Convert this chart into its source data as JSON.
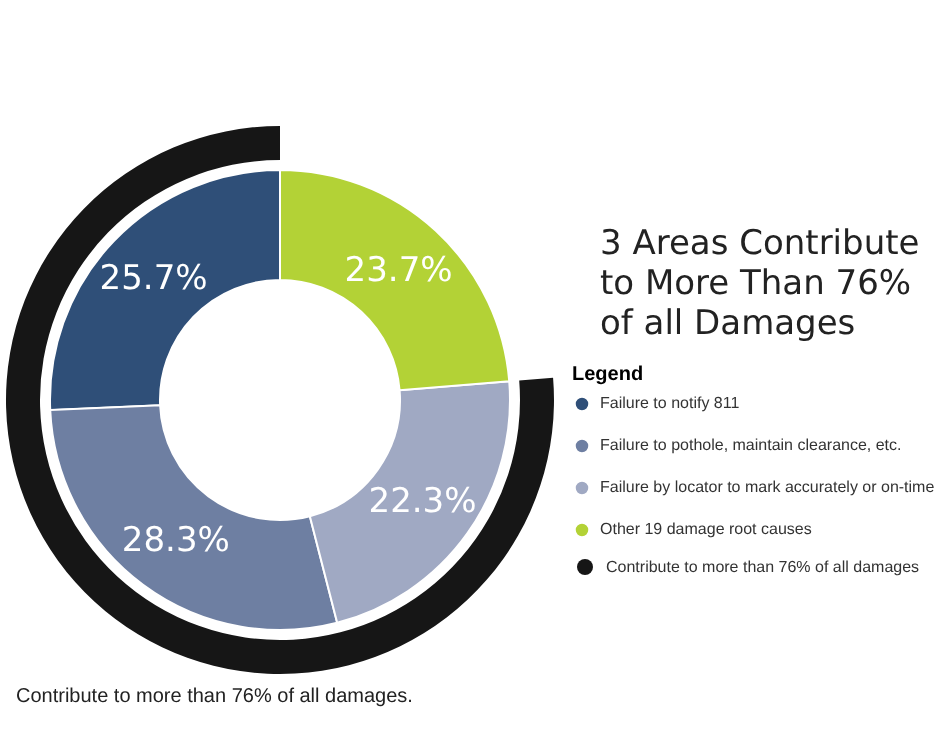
{
  "chart_data": {
    "type": "donut",
    "title": "3 Areas Contribute to More Than 76% of all Damages",
    "legend_title": "Legend",
    "legend": "right",
    "categories": [
      "Failure to notify 811",
      "Failure to pothole, maintain clearance, etc.",
      "Failure by locator to mark accurately or on-time",
      "Other 19 damage root causes"
    ],
    "colors": [
      "#2f4f78",
      "#6e7fa2",
      "#a0a9c3",
      "#b3d236"
    ],
    "values": [
      25.7,
      28.3,
      22.3,
      23.7
    ],
    "value_labels": [
      "25.7%",
      "28.3%",
      "22.3%",
      "23.7%"
    ],
    "annotations": [
      "Contribute to more than 76% of all damages.",
      "Contribute to more than 76% of all damages"
    ]
  }
}
